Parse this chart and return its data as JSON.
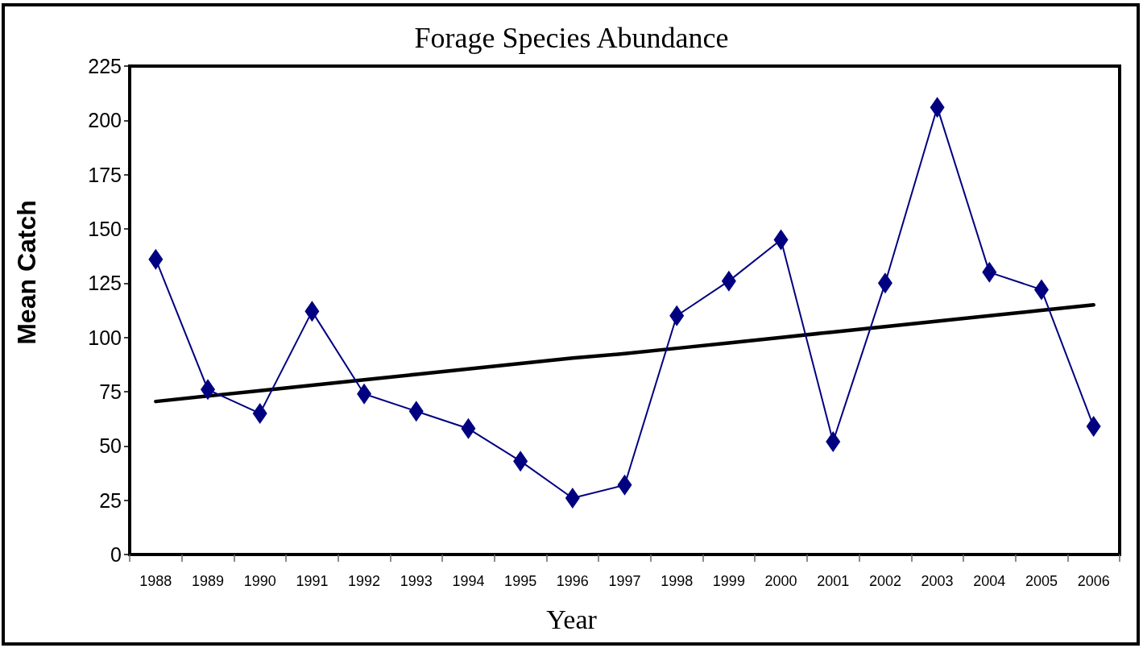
{
  "chart_data": {
    "type": "line",
    "title": "Forage Species Abundance",
    "xlabel": "Year",
    "ylabel": "Mean Catch",
    "categories": [
      "1988",
      "1989",
      "1990",
      "1991",
      "1992",
      "1993",
      "1994",
      "1995",
      "1996",
      "1997",
      "1998",
      "1999",
      "2000",
      "2001",
      "2002",
      "2003",
      "2004",
      "2005",
      "2006"
    ],
    "series": [
      {
        "color": "#000080",
        "marker": "diamond",
        "values": [
          136,
          76,
          65,
          112,
          74,
          66,
          58,
          43,
          26,
          32,
          110,
          126,
          145,
          52,
          125,
          206,
          130,
          122,
          59
        ]
      },
      {
        "type": "line",
        "color": "#000000",
        "marker": "none",
        "values": [
          70.5,
          73,
          75.5,
          78,
          80.5,
          83,
          85.5,
          88,
          90.5,
          92.5,
          95,
          97.5,
          100,
          102.5,
          105,
          107.5,
          110,
          112.5,
          115
        ]
      }
    ],
    "ylim": [
      0,
      225
    ],
    "yticks": [
      0,
      25,
      50,
      75,
      100,
      125,
      150,
      175,
      200,
      225
    ],
    "grid": false,
    "line_style": "solid"
  }
}
